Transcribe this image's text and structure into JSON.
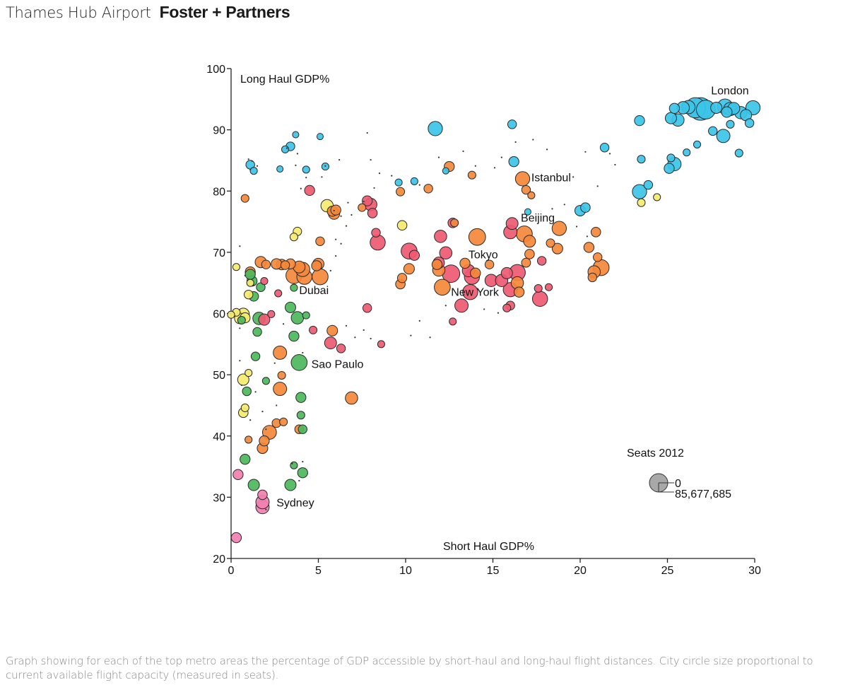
{
  "header": {
    "title": "Thames Hub Airport",
    "brand": "Foster + Partners"
  },
  "caption": "Graph showing for each of the top metro areas the percentage of GDP accessible by short-haul and long-haul flight distances. City circle size proportional to current available flight capacity (measured in seats).",
  "colors": {
    "europe": "#3bc4e8",
    "asia_middle_east": "#f5883a",
    "americas_north_asia": "#ee5a72",
    "south_america": "#4cb85c",
    "africa": "#f5ec6e",
    "oceania": "#f27fb0",
    "legend_circle": "#a8a8a8"
  },
  "chart_data": {
    "type": "scatter",
    "title": "",
    "xlabel": "Short Haul GDP%",
    "ylabel": "Long Haul GDP%",
    "xlim": [
      0,
      30
    ],
    "ylim": [
      20,
      100
    ],
    "x_ticks": [
      "0",
      "5",
      "10",
      "15",
      "20",
      "25",
      "30"
    ],
    "y_ticks": [
      "20",
      "30",
      "40",
      "50",
      "60",
      "70",
      "80",
      "90",
      "100"
    ],
    "grid": false,
    "size_legend": {
      "title": "Seats 2012",
      "min_label": "0",
      "max_label": "85,677,685",
      "placement": "bottom-right"
    },
    "labeled_cities": [
      {
        "name": "London",
        "x": 27.5,
        "y": 95.8
      },
      {
        "name": "Istanbul",
        "x": 17.2,
        "y": 81.6
      },
      {
        "name": "Beijing",
        "x": 16.6,
        "y": 75.0
      },
      {
        "name": "Tokyo",
        "x": 13.6,
        "y": 69.0
      },
      {
        "name": "New York",
        "x": 12.6,
        "y": 62.9
      },
      {
        "name": "Dubai",
        "x": 3.9,
        "y": 63.2
      },
      {
        "name": "Sao Paulo",
        "x": 4.6,
        "y": 51.1
      },
      {
        "name": "Sydney",
        "x": 2.6,
        "y": 28.5
      }
    ],
    "series": [
      {
        "name": "europe",
        "points": [
          [
            26.9,
            93.4,
            1.0
          ],
          [
            26.6,
            93.6,
            0.8
          ],
          [
            27.2,
            93.3,
            0.7
          ],
          [
            26.2,
            93.7,
            0.35
          ],
          [
            25.9,
            93.6,
            0.3
          ],
          [
            28.3,
            93.8,
            0.45
          ],
          [
            28.6,
            93.4,
            0.35
          ],
          [
            29.9,
            93.6,
            0.4
          ],
          [
            29.5,
            92.4,
            0.25
          ],
          [
            29.2,
            92.8,
            0.3
          ],
          [
            28.8,
            93.5,
            0.28
          ],
          [
            28.4,
            92.9,
            0.22
          ],
          [
            27.8,
            93.6,
            0.25
          ],
          [
            25.4,
            93.5,
            0.2
          ],
          [
            25.2,
            91.9,
            0.25
          ],
          [
            25.6,
            91.6,
            0.3
          ],
          [
            28.2,
            89.0,
            0.35
          ],
          [
            27.6,
            89.8,
            0.15
          ],
          [
            28.6,
            90.9,
            0.12
          ],
          [
            29.7,
            91.1,
            0.15
          ],
          [
            23.4,
            91.5,
            0.2
          ],
          [
            25.4,
            84.4,
            0.35
          ],
          [
            25.1,
            83.7,
            0.2
          ],
          [
            25.2,
            85.4,
            0.12
          ],
          [
            26.1,
            86.3,
            0.1
          ],
          [
            26.7,
            87.6,
            0.1
          ],
          [
            29.1,
            86.2,
            0.12
          ],
          [
            23.4,
            79.9,
            0.4
          ],
          [
            23.9,
            81.0,
            0.15
          ],
          [
            20.0,
            76.8,
            0.22
          ],
          [
            20.3,
            77.3,
            0.18
          ],
          [
            21.4,
            87.1,
            0.15
          ],
          [
            23.5,
            85.2,
            0.12
          ],
          [
            11.7,
            90.2,
            0.4
          ],
          [
            16.1,
            90.9,
            0.15
          ],
          [
            16.2,
            84.8,
            0.2
          ],
          [
            1.1,
            84.3,
            0.15
          ],
          [
            1.3,
            83.3,
            0.1
          ],
          [
            3.4,
            87.3,
            0.15
          ],
          [
            3.1,
            86.8,
            0.1
          ],
          [
            3.7,
            89.2,
            0.08
          ],
          [
            5.1,
            88.9,
            0.08
          ],
          [
            4.3,
            83.5,
            0.1
          ],
          [
            5.4,
            84.0,
            0.1
          ],
          [
            2.8,
            83.6,
            0.08
          ],
          [
            9.6,
            81.4,
            0.1
          ],
          [
            10.5,
            81.6,
            0.1
          ],
          [
            12.3,
            83.3,
            0.08
          ],
          [
            17.0,
            76.6,
            0.08
          ]
        ]
      },
      {
        "name": "asia_middle_east",
        "points": [
          [
            16.7,
            82.0,
            0.4
          ],
          [
            16.9,
            80.2,
            0.15
          ],
          [
            17.2,
            79.3,
            0.1
          ],
          [
            16.8,
            73.0,
            0.5
          ],
          [
            17.1,
            71.8,
            0.28
          ],
          [
            18.8,
            73.9,
            0.4
          ],
          [
            14.1,
            72.5,
            0.55
          ],
          [
            21.2,
            67.5,
            0.5
          ],
          [
            20.8,
            66.8,
            0.3
          ],
          [
            20.7,
            65.9,
            0.15
          ],
          [
            21.0,
            69.2,
            0.15
          ],
          [
            20.5,
            70.8,
            0.2
          ],
          [
            20.9,
            73.3,
            0.18
          ],
          [
            18.7,
            70.6,
            0.22
          ],
          [
            18.3,
            71.5,
            0.14
          ],
          [
            17.1,
            69.7,
            0.18
          ],
          [
            16.9,
            68.3,
            0.16
          ],
          [
            12.1,
            64.3,
            0.5
          ],
          [
            11.9,
            67.1,
            0.3
          ],
          [
            11.8,
            68.0,
            0.2
          ],
          [
            13.4,
            68.2,
            0.2
          ],
          [
            14.0,
            66.6,
            0.2
          ],
          [
            14.8,
            68.0,
            0.15
          ],
          [
            16.4,
            65.0,
            0.3
          ],
          [
            16.5,
            63.5,
            0.2
          ],
          [
            10.2,
            67.3,
            0.22
          ],
          [
            9.8,
            65.8,
            0.17
          ],
          [
            9.7,
            64.8,
            0.18
          ],
          [
            12.5,
            84.0,
            0.2
          ],
          [
            11.3,
            80.4,
            0.15
          ],
          [
            13.8,
            82.6,
            0.12
          ],
          [
            12.8,
            74.8,
            0.12
          ],
          [
            9.7,
            79.9,
            0.14
          ],
          [
            3.6,
            66.2,
            0.5
          ],
          [
            4.1,
            67.2,
            0.4
          ],
          [
            4.2,
            66.0,
            0.45
          ],
          [
            5.1,
            66.0,
            0.5
          ],
          [
            3.9,
            67.6,
            0.28
          ],
          [
            3.4,
            68.1,
            0.2
          ],
          [
            2.9,
            68.0,
            0.22
          ],
          [
            2.6,
            68.1,
            0.22
          ],
          [
            1.7,
            68.4,
            0.25
          ],
          [
            1.1,
            66.8,
            0.2
          ],
          [
            4.9,
            67.8,
            0.2
          ],
          [
            5.0,
            68.1,
            0.25
          ],
          [
            2.0,
            68.0,
            0.15
          ],
          [
            3.1,
            67.9,
            0.15
          ],
          [
            2.8,
            53.6,
            0.35
          ],
          [
            2.8,
            47.7,
            0.35
          ],
          [
            2.2,
            40.6,
            0.38
          ],
          [
            1.9,
            39.2,
            0.2
          ],
          [
            1.8,
            38.0,
            0.22
          ],
          [
            2.6,
            42.1,
            0.15
          ],
          [
            3.0,
            42.3,
            0.12
          ],
          [
            6.9,
            46.2,
            0.3
          ],
          [
            5.8,
            57.2,
            0.22
          ],
          [
            5.1,
            71.8,
            0.15
          ],
          [
            5.8,
            76.7,
            0.2
          ],
          [
            5.9,
            76.3,
            0.25
          ],
          [
            6.0,
            76.9,
            0.2
          ],
          [
            7.5,
            77.3,
            0.12
          ],
          [
            0.8,
            78.8,
            0.12
          ],
          [
            3.9,
            41.1,
            0.15
          ],
          [
            2.9,
            49.9,
            0.12
          ],
          [
            1.0,
            39.4,
            0.1
          ]
        ]
      },
      {
        "name": "americas_north_asia",
        "points": [
          [
            12.6,
            66.5,
            0.6
          ],
          [
            13.8,
            66.0,
            0.45
          ],
          [
            13.7,
            63.5,
            0.45
          ],
          [
            16.4,
            66.7,
            0.5
          ],
          [
            16.0,
            63.9,
            0.4
          ],
          [
            17.7,
            62.4,
            0.45
          ],
          [
            13.2,
            61.3,
            0.35
          ],
          [
            14.9,
            65.4,
            0.3
          ],
          [
            15.5,
            65.4,
            0.3
          ],
          [
            15.8,
            66.6,
            0.25
          ],
          [
            11.9,
            68.3,
            0.25
          ],
          [
            13.6,
            67.0,
            0.3
          ],
          [
            12.3,
            69.9,
            0.3
          ],
          [
            10.2,
            70.2,
            0.5
          ],
          [
            10.5,
            69.5,
            0.2
          ],
          [
            8.4,
            71.6,
            0.45
          ],
          [
            8.3,
            73.2,
            0.15
          ],
          [
            8.0,
            77.8,
            0.3
          ],
          [
            7.8,
            78.4,
            0.2
          ],
          [
            8.1,
            76.4,
            0.18
          ],
          [
            12.0,
            72.6,
            0.3
          ],
          [
            16.1,
            74.7,
            0.28
          ],
          [
            16.0,
            73.3,
            0.35
          ],
          [
            17.8,
            68.6,
            0.15
          ],
          [
            17.6,
            64.1,
            0.12
          ],
          [
            18.2,
            64.3,
            0.1
          ],
          [
            16.0,
            61.3,
            0.15
          ],
          [
            15.8,
            60.9,
            0.12
          ],
          [
            12.7,
            74.8,
            0.18
          ],
          [
            4.5,
            80.1,
            0.2
          ],
          [
            7.8,
            60.9,
            0.15
          ],
          [
            5.7,
            55.2,
            0.28
          ],
          [
            6.3,
            54.3,
            0.15
          ],
          [
            1.9,
            59.0,
            0.25
          ],
          [
            4.7,
            57.3,
            0.12
          ],
          [
            2.3,
            59.9,
            0.1
          ],
          [
            2.7,
            63.3,
            0.1
          ],
          [
            1.9,
            65.3,
            0.1
          ],
          [
            8.6,
            55.0,
            0.1
          ],
          [
            12.7,
            58.7,
            0.1
          ]
        ]
      },
      {
        "name": "south_america",
        "points": [
          [
            3.9,
            52.0,
            0.5
          ],
          [
            1.6,
            59.2,
            0.3
          ],
          [
            3.8,
            59.3,
            0.3
          ],
          [
            3.4,
            61.0,
            0.22
          ],
          [
            1.3,
            62.8,
            0.18
          ],
          [
            1.2,
            65.3,
            0.2
          ],
          [
            1.1,
            66.4,
            0.2
          ],
          [
            1.7,
            64.3,
            0.15
          ],
          [
            3.6,
            56.3,
            0.2
          ],
          [
            0.9,
            47.3,
            0.15
          ],
          [
            2.0,
            49.0,
            0.1
          ],
          [
            4.0,
            46.3,
            0.2
          ],
          [
            4.1,
            41.1,
            0.15
          ],
          [
            4.0,
            43.4,
            0.12
          ],
          [
            1.4,
            53.0,
            0.15
          ],
          [
            0.8,
            36.2,
            0.2
          ],
          [
            1.3,
            32.0,
            0.25
          ],
          [
            3.4,
            32.0,
            0.25
          ],
          [
            4.1,
            34.0,
            0.2
          ],
          [
            3.6,
            35.2,
            0.1
          ],
          [
            1.5,
            57.0,
            0.15
          ],
          [
            3.6,
            64.2,
            0.1
          ],
          [
            4.3,
            59.7,
            0.1
          ],
          [
            0.6,
            58.9,
            0.12
          ]
        ]
      },
      {
        "name": "africa",
        "points": [
          [
            0.7,
            49.2,
            0.25
          ],
          [
            0.7,
            43.8,
            0.18
          ],
          [
            0.8,
            44.6,
            0.12
          ],
          [
            0.5,
            59.2,
            0.22
          ],
          [
            0.7,
            59.9,
            0.28
          ],
          [
            0.8,
            59.3,
            0.2
          ],
          [
            1.0,
            63.1,
            0.15
          ],
          [
            0.3,
            60.2,
            0.12
          ],
          [
            0.0,
            59.8,
            0.1
          ],
          [
            1.0,
            50.3,
            0.1
          ],
          [
            5.5,
            77.6,
            0.3
          ],
          [
            3.8,
            73.4,
            0.14
          ],
          [
            3.6,
            72.5,
            0.12
          ],
          [
            9.8,
            74.4,
            0.18
          ],
          [
            23.5,
            78.1,
            0.12
          ],
          [
            24.4,
            79.0,
            0.1
          ],
          [
            0.3,
            67.6,
            0.1
          ],
          [
            1.1,
            65.0,
            0.1
          ]
        ]
      },
      {
        "name": "oceania",
        "points": [
          [
            1.8,
            28.4,
            0.35
          ],
          [
            1.8,
            29.2,
            0.35
          ],
          [
            1.8,
            30.4,
            0.18
          ],
          [
            0.4,
            33.7,
            0.2
          ],
          [
            0.3,
            23.4,
            0.2
          ]
        ]
      }
    ]
  }
}
